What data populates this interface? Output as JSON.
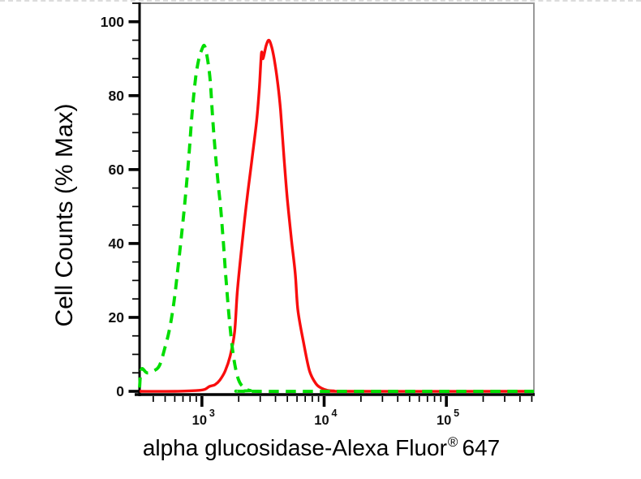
{
  "page": {
    "background": "#ffffff",
    "top_border_color": "#dcdcdc"
  },
  "chart_data": {
    "type": "line",
    "subtype": "flow-cytometry-overlay-histogram",
    "title": "",
    "xlabel_main": "alpha glucosidase-Alexa Fluor",
    "xlabel_registered": "®",
    "xlabel_suffix": "647",
    "ylabel": "Cell Counts (% Max)",
    "x_scale": "log10",
    "xlim": [
      309,
      520000
    ],
    "ylim": [
      0,
      105
    ],
    "grid": false,
    "legend_position": "none",
    "frame": {
      "axis_color": "#000000",
      "box_color": "#9a9a9a",
      "tick_label_color": "#111111"
    },
    "y_axis": {
      "major_ticks": [
        {
          "value": 0,
          "label": "0"
        },
        {
          "value": 20,
          "label": "20"
        },
        {
          "value": 40,
          "label": "40"
        },
        {
          "value": 60,
          "label": "60"
        },
        {
          "value": 80,
          "label": "80"
        },
        {
          "value": 100,
          "label": "100"
        }
      ],
      "minor_step": 5,
      "minor_max": 105
    },
    "x_axis": {
      "major_ticks": [
        {
          "value": 1000,
          "label_base": "10",
          "label_exp": "3"
        },
        {
          "value": 10000,
          "label_base": "10",
          "label_exp": "4"
        },
        {
          "value": 100000,
          "label_base": "10",
          "label_exp": "5"
        }
      ],
      "minor_ticks": "log-decade-subdivisions"
    },
    "series": [
      {
        "name": "red solid histogram (alpha glucosidase-Alexa Fluor 647 stained, peak ~3.5e3 at 95% Max)",
        "color": "#f90d0d",
        "style": "solid",
        "points": [
          [
            309,
            0
          ],
          [
            600,
            0
          ],
          [
            900,
            0.2
          ],
          [
            1050,
            0.5
          ],
          [
            1150,
            1.3
          ],
          [
            1280,
            1.8
          ],
          [
            1400,
            3
          ],
          [
            1550,
            5.5
          ],
          [
            1700,
            9.5
          ],
          [
            1850,
            16
          ],
          [
            1950,
            27
          ],
          [
            2100,
            38
          ],
          [
            2300,
            50
          ],
          [
            2550,
            62
          ],
          [
            2800,
            73
          ],
          [
            2950,
            82
          ],
          [
            3070,
            91.5
          ],
          [
            3160,
            90
          ],
          [
            3350,
            93.5
          ],
          [
            3520,
            95
          ],
          [
            3700,
            93.5
          ],
          [
            3900,
            90
          ],
          [
            4150,
            84
          ],
          [
            4400,
            76
          ],
          [
            4700,
            63
          ],
          [
            5000,
            52
          ],
          [
            5400,
            41
          ],
          [
            5800,
            32
          ],
          [
            6100,
            22
          ],
          [
            6800,
            13
          ],
          [
            7600,
            5.5
          ],
          [
            8600,
            2
          ],
          [
            9600,
            0.8
          ],
          [
            10500,
            0.3
          ],
          [
            12000,
            0.1
          ],
          [
            15000,
            0
          ],
          [
            520000,
            0
          ]
        ]
      },
      {
        "name": "green dashed histogram (negative control, peak ~1.0e3 at 93% Max)",
        "color": "#00dd00",
        "style": "dashed",
        "points": [
          [
            309,
            1
          ],
          [
            320,
            6
          ],
          [
            355,
            5
          ],
          [
            400,
            5.5
          ],
          [
            450,
            7
          ],
          [
            500,
            12
          ],
          [
            545,
            17
          ],
          [
            590,
            24
          ],
          [
            635,
            33
          ],
          [
            680,
            42
          ],
          [
            730,
            52
          ],
          [
            780,
            63
          ],
          [
            835,
            76
          ],
          [
            890,
            85
          ],
          [
            945,
            90
          ],
          [
            1000,
            92.5
          ],
          [
            1050,
            93.5
          ],
          [
            1110,
            90
          ],
          [
            1170,
            84
          ],
          [
            1230,
            73
          ],
          [
            1300,
            63
          ],
          [
            1370,
            55
          ],
          [
            1430,
            49
          ],
          [
            1500,
            40
          ],
          [
            1570,
            31
          ],
          [
            1660,
            21
          ],
          [
            1770,
            12
          ],
          [
            1890,
            6
          ],
          [
            2030,
            2.5
          ],
          [
            2250,
            0.8
          ],
          [
            2500,
            0.2
          ],
          [
            2900,
            0
          ],
          [
            520000,
            0
          ]
        ]
      }
    ]
  }
}
